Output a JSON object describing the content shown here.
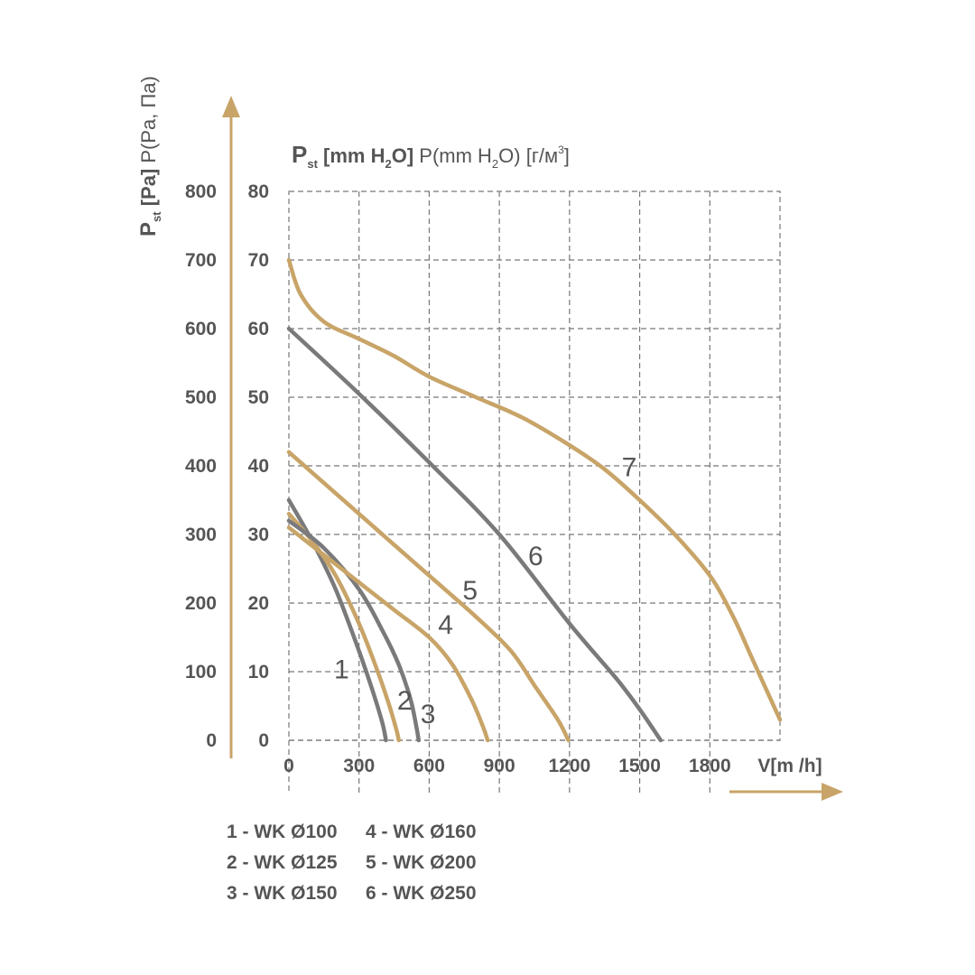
{
  "colors": {
    "gold": "#C8A468",
    "gray": "#7A7A7C",
    "text": "#555555",
    "grid": "#777777"
  },
  "chart_data": {
    "type": "line",
    "title_parts": {
      "bold": "P",
      "bold_sub": "st",
      "bold_rest_1": " [mm H",
      "bold_sub2": "2",
      "bold_rest_2": "O]",
      "plain_1": " P(mm H",
      "plain_sub": "2",
      "plain_2": "O) [г/м",
      "plain_sup": "3",
      "plain_3": "]"
    },
    "ylabel_parts": {
      "bold": "P",
      "bold_sub": "st",
      "bold_rest": " [Pa]",
      "plain": " P(Pa, Па)"
    },
    "xlabel": "V[m /h]",
    "xlim": [
      0,
      2100
    ],
    "ylim": [
      0,
      80
    ],
    "x_ticks": [
      "0",
      "300",
      "600",
      "900",
      "1200",
      "1500",
      "1800"
    ],
    "x_tick_values": [
      0,
      300,
      600,
      900,
      1200,
      1500,
      1800
    ],
    "y_ticks_pa": [
      "0",
      "100",
      "200",
      "300",
      "400",
      "500",
      "600",
      "700",
      "800"
    ],
    "y_ticks_mm": [
      "0",
      "10",
      "20",
      "30",
      "40",
      "50",
      "60",
      "70",
      "80"
    ],
    "y_tick_values": [
      0,
      10,
      20,
      30,
      40,
      50,
      60,
      70,
      80
    ],
    "series": [
      {
        "name": "1",
        "color": "gray",
        "label_pos": [
          225,
          9
        ],
        "label_size": 30,
        "x": [
          0,
          100,
          200,
          300,
          360,
          400,
          415
        ],
        "y": [
          35,
          29,
          22,
          13,
          7,
          2.5,
          0
        ]
      },
      {
        "name": "2",
        "color": "gold",
        "label_pos": [
          495,
          4.5
        ],
        "label_size": 22,
        "x": [
          0,
          100,
          200,
          300,
          380,
          430,
          460,
          470
        ],
        "y": [
          33,
          29,
          24,
          17,
          10,
          5,
          1.5,
          0
        ]
      },
      {
        "name": "3",
        "color": "gray",
        "label_pos": [
          595,
          2.5
        ],
        "label_size": 30,
        "x": [
          0,
          150,
          300,
          400,
          470,
          520,
          545,
          555
        ],
        "y": [
          32,
          28,
          22,
          16,
          11,
          6,
          2,
          0
        ]
      },
      {
        "name": "4",
        "color": "gold",
        "label_pos": [
          670,
          15.5
        ],
        "label_size": 30,
        "x": [
          0,
          150,
          300,
          450,
          600,
          700,
          780,
          830,
          850
        ],
        "y": [
          31,
          27,
          23,
          19,
          15,
          11,
          6,
          2,
          0
        ]
      },
      {
        "name": "5",
        "color": "gold",
        "label_pos": [
          775,
          20.5
        ],
        "label_size": 30,
        "x": [
          0,
          200,
          400,
          600,
          800,
          950,
          1050,
          1150,
          1195
        ],
        "y": [
          42,
          36,
          30,
          24,
          18,
          13,
          8,
          3,
          0
        ]
      },
      {
        "name": "6",
        "color": "gray",
        "label_pos": [
          1055,
          25.5
        ],
        "label_size": 30,
        "x": [
          0,
          300,
          600,
          900,
          1200,
          1400,
          1500,
          1590
        ],
        "y": [
          60,
          50.5,
          40.5,
          30,
          17,
          9,
          4.5,
          0
        ]
      },
      {
        "name": "7",
        "color": "gold",
        "label_pos": [
          1455,
          38.5
        ],
        "label_size": 30,
        "x": [
          0,
          50,
          150,
          300,
          450,
          600,
          800,
          1000,
          1200,
          1350,
          1500,
          1650,
          1800,
          1900,
          1980,
          2100
        ],
        "y": [
          70,
          65,
          61,
          58.5,
          56,
          53,
          50,
          47,
          43,
          39.5,
          35,
          30,
          24,
          18,
          12,
          3
        ]
      }
    ],
    "legend": [
      "1 - WK Ø100",
      "2 - WK Ø125",
      "3 - WK Ø150",
      "4 - WK Ø160",
      "5 - WK Ø200",
      "6 - WK Ø250"
    ]
  }
}
